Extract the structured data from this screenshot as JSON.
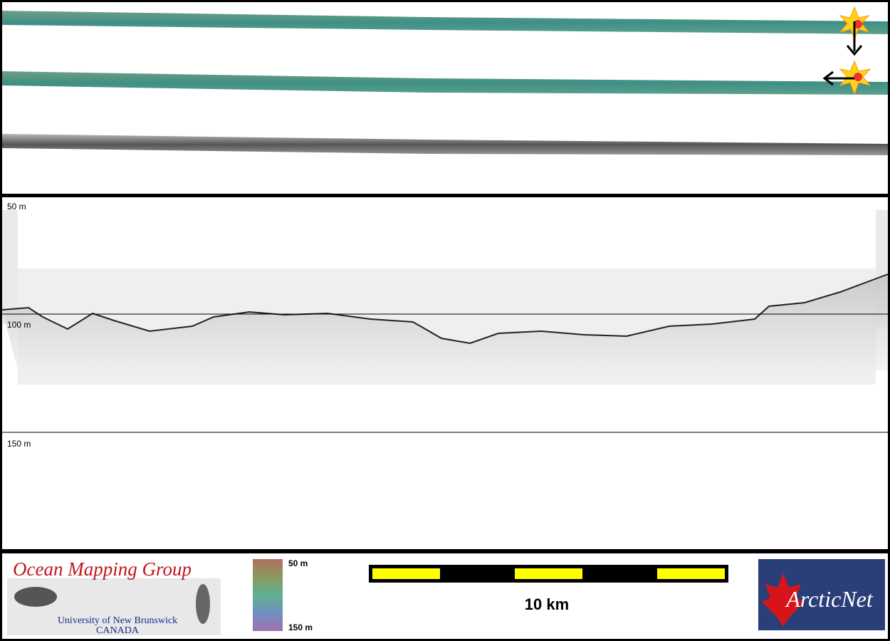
{
  "depth_labels": {
    "top": "50 m",
    "middle": "100 m",
    "bottom": "150 m"
  },
  "logo": {
    "title": "Ocean Mapping Group",
    "line1": "University of New Brunswick",
    "line2": "CANADA"
  },
  "color_bar": {
    "top": "50 m",
    "bottom": "150 m"
  },
  "scale_bar": {
    "label": "10 km"
  },
  "partner": {
    "name": "ArcticNet"
  }
}
